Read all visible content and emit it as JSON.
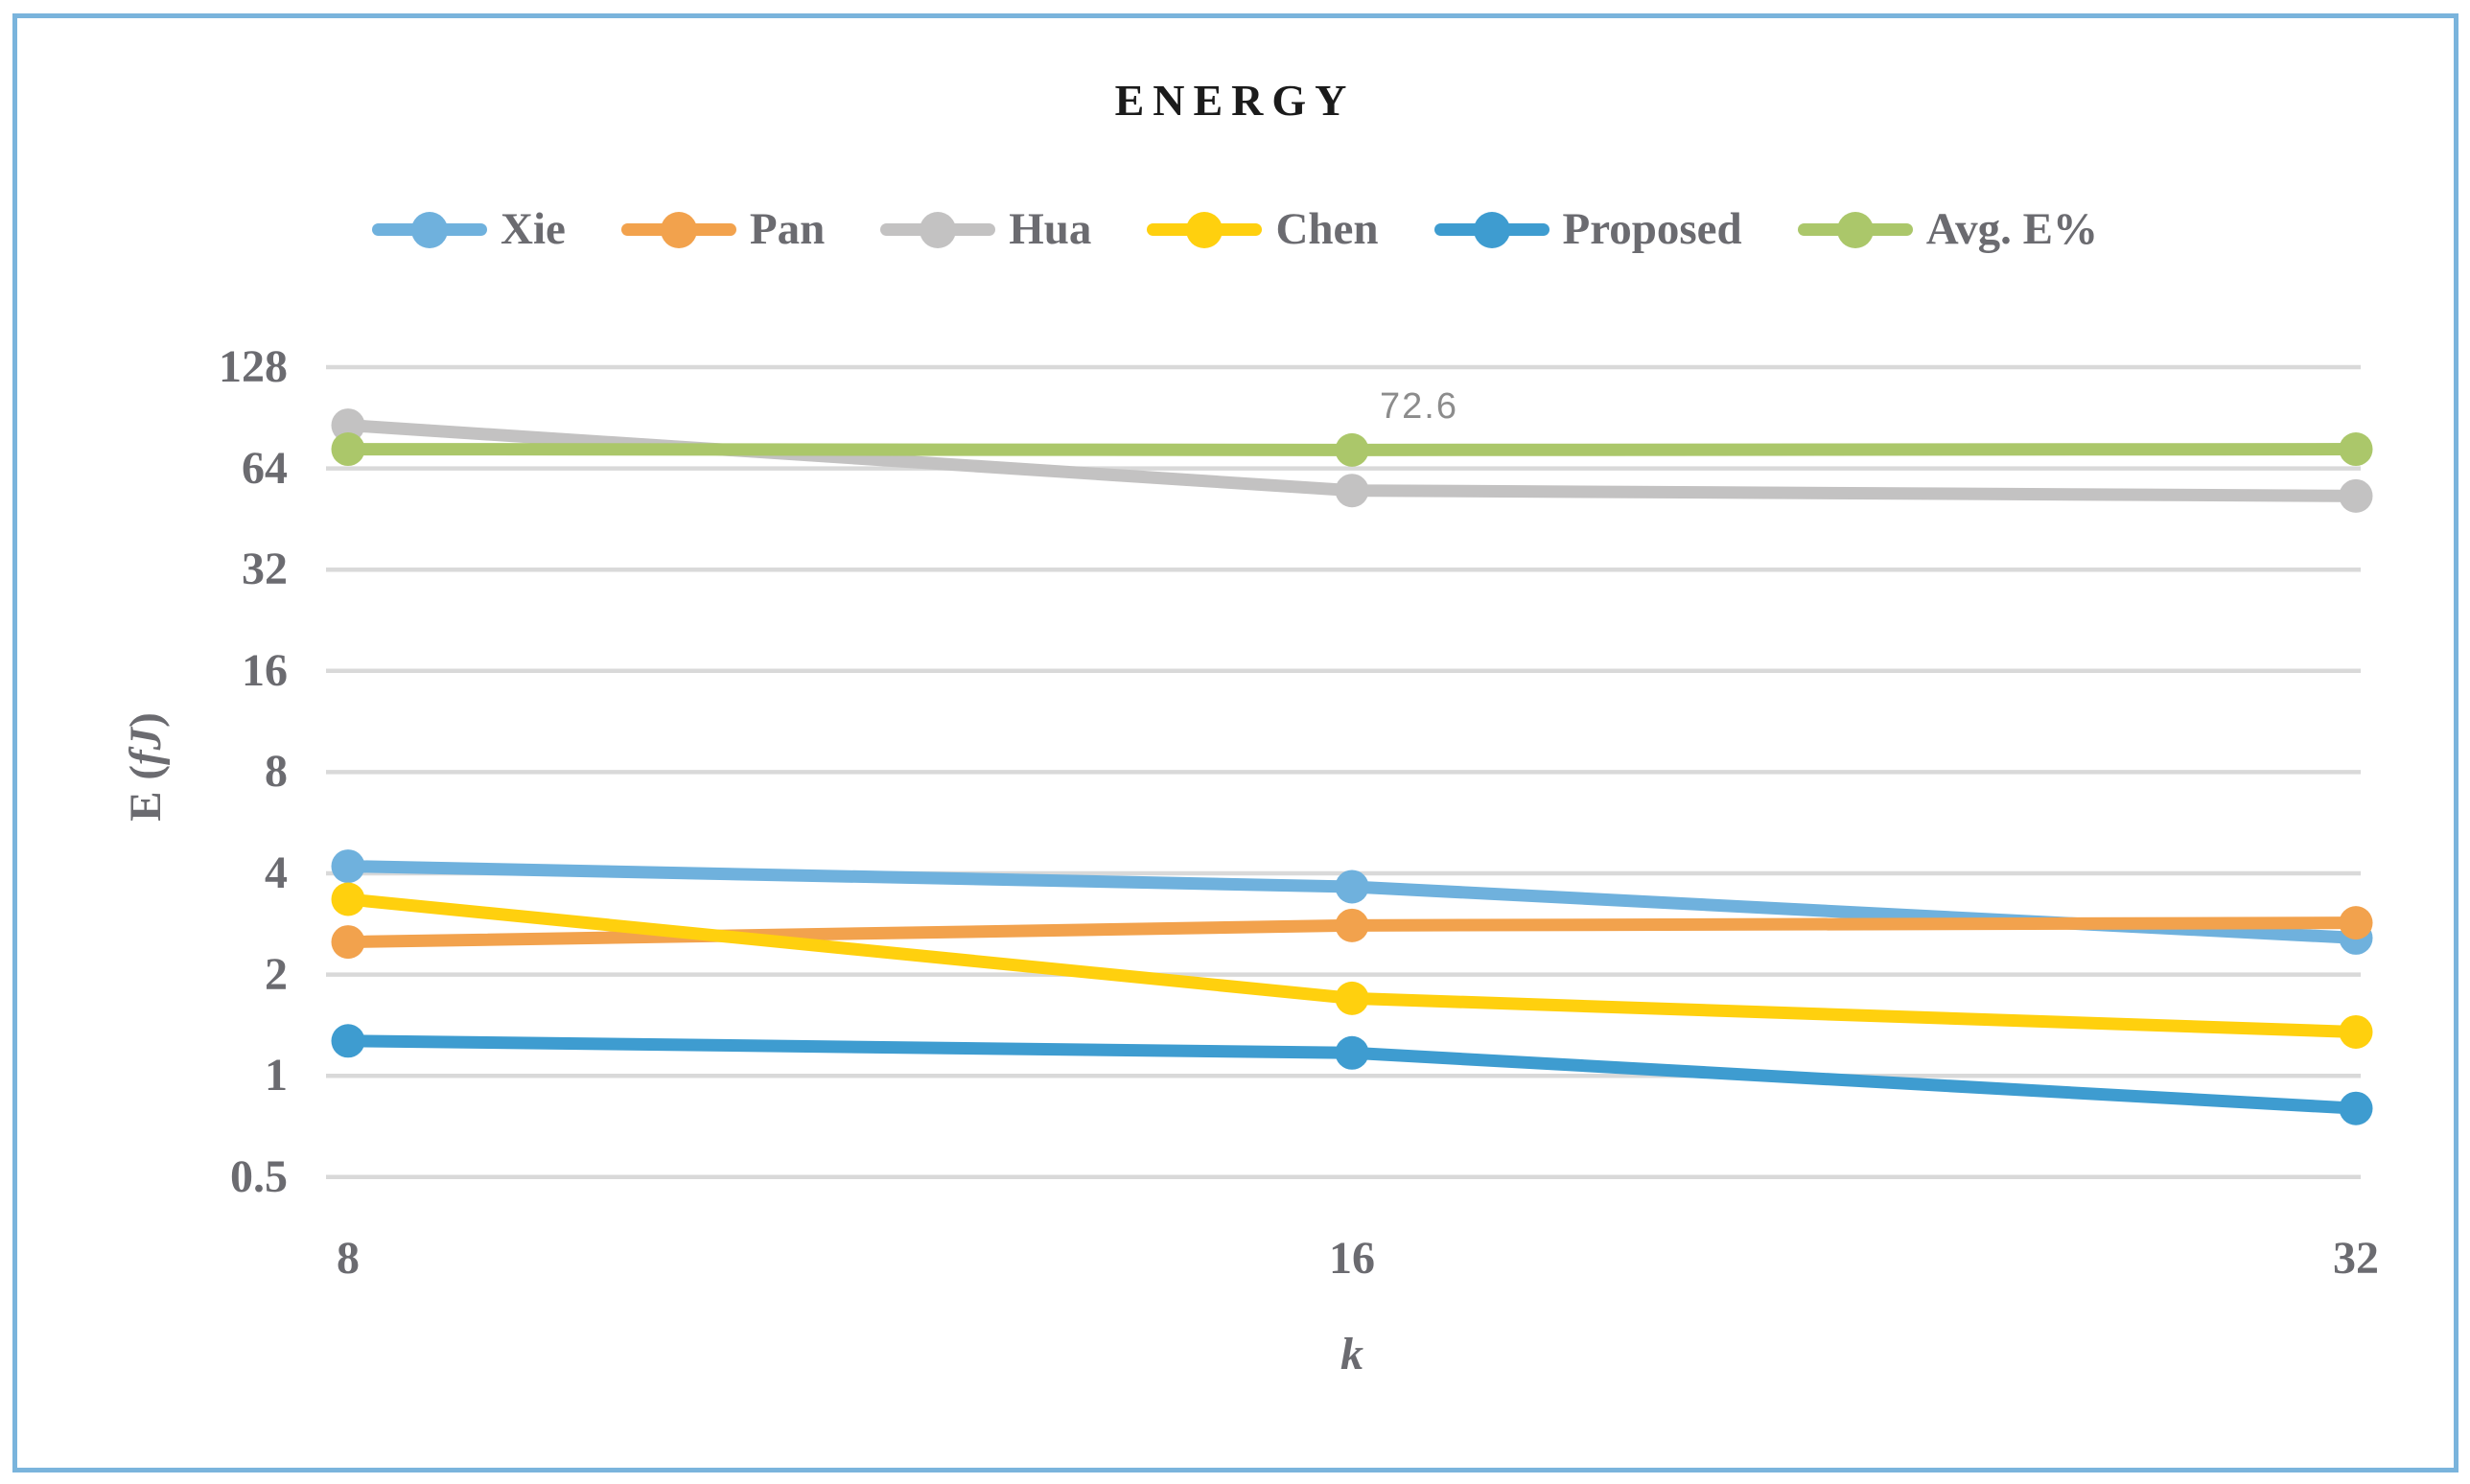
{
  "title": "ENERGY",
  "axis": {
    "ylabel_prefix": "E (",
    "ylabel_italic": "fJ",
    "ylabel_suffix": ")",
    "xlabel": "k"
  },
  "annotation": {
    "text": "72.6",
    "series": "Avg. E%",
    "x_index": 1
  },
  "frame_color": "#7AB4DC",
  "grid_color": "#D9D9D9",
  "text_color": "#6B6B70",
  "chart_data": {
    "type": "line",
    "x_categories": [
      "8",
      "16",
      "32"
    ],
    "xlabel": "k",
    "ylabel": "E (fJ)",
    "y_scale": "log2",
    "y_ticks": [
      "128",
      "64",
      "32",
      "16",
      "8",
      "4",
      "2",
      "1",
      "0.5"
    ],
    "ylim": [
      0.45,
      150
    ],
    "grid": true,
    "legend_position": "top",
    "series": [
      {
        "name": "Xie",
        "color": "#6FB1DD",
        "values": [
          4.2,
          3.65,
          2.57
        ]
      },
      {
        "name": "Pan",
        "color": "#F2A24D",
        "values": [
          2.5,
          2.8,
          2.85
        ]
      },
      {
        "name": "Hua",
        "color": "#C3C2C2",
        "values": [
          86,
          55,
          53
        ]
      },
      {
        "name": "Chen",
        "color": "#FFD00E",
        "values": [
          3.35,
          1.7,
          1.35
        ]
      },
      {
        "name": "Proposed",
        "color": "#3E9CD0",
        "values": [
          1.27,
          1.17,
          0.8
        ]
      },
      {
        "name": "Avg. E%",
        "color": "#ABC76A",
        "values": [
          73,
          72.6,
          73
        ]
      }
    ],
    "data_labels": [
      {
        "series": "Avg. E%",
        "x": "16",
        "label": "72.6"
      }
    ]
  }
}
